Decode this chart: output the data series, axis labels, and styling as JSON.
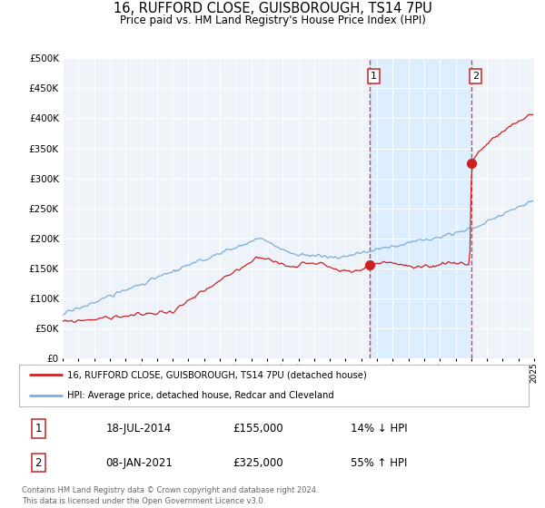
{
  "title": "16, RUFFORD CLOSE, GUISBOROUGH, TS14 7PU",
  "subtitle": "Price paid vs. HM Land Registry's House Price Index (HPI)",
  "legend_line1": "16, RUFFORD CLOSE, GUISBOROUGH, TS14 7PU (detached house)",
  "legend_line2": "HPI: Average price, detached house, Redcar and Cleveland",
  "transaction1_label": "1",
  "transaction1_date": "18-JUL-2014",
  "transaction1_price": "£155,000",
  "transaction1_hpi": "14% ↓ HPI",
  "transaction2_label": "2",
  "transaction2_date": "08-JAN-2021",
  "transaction2_price": "£325,000",
  "transaction2_hpi": "55% ↑ HPI",
  "footer_line1": "Contains HM Land Registry data © Crown copyright and database right 2024.",
  "footer_line2": "This data is licensed under the Open Government Licence v3.0.",
  "hpi_color": "#7aadd9",
  "price_color": "#cc2222",
  "vline_color": "#cc2222",
  "shade_color": "#ddeeff",
  "plot_bg": "#eef3fa",
  "ylim": [
    0,
    500000
  ],
  "yticks": [
    0,
    50000,
    100000,
    150000,
    200000,
    250000,
    300000,
    350000,
    400000,
    450000,
    500000
  ],
  "xstart_year": 1995,
  "xend_year": 2025,
  "transaction1_year": 2014.54,
  "transaction2_year": 2021.02
}
